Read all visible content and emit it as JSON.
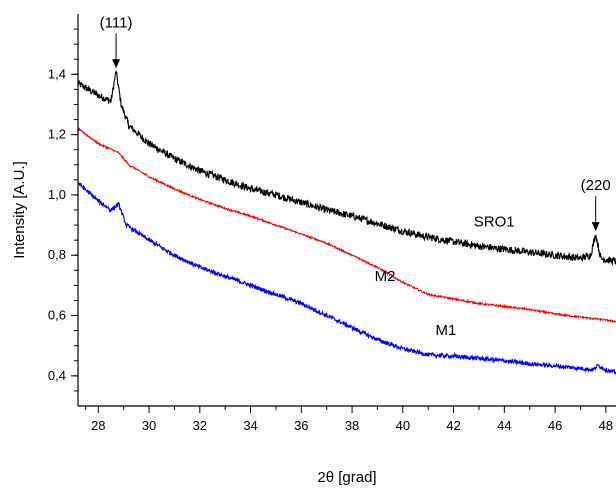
{
  "chart_data": {
    "type": "line",
    "title": "",
    "xlabel": "2θ [grad]",
    "ylabel": "Intensity [A.U.]",
    "xlim": [
      27.2,
      48.4
    ],
    "ylim": [
      0.3,
      1.6
    ],
    "x_ticks": [
      "28",
      "30",
      "32",
      "34",
      "36",
      "38",
      "40",
      "42",
      "44",
      "46",
      "48"
    ],
    "y_ticks": [
      "0,4",
      "0,6",
      "0,8",
      "1,0",
      "1,2",
      "1,4"
    ],
    "grid": false,
    "legend": "none",
    "series": [
      {
        "name": "SRO1",
        "color": "#000000",
        "noise": 0.012,
        "x": [
          27.2,
          28.0,
          28.5,
          28.7,
          28.9,
          29.2,
          30.0,
          31.0,
          32.0,
          33.0,
          34.0,
          35.0,
          36.0,
          37.0,
          38.0,
          39.0,
          40.0,
          41.0,
          42.0,
          43.0,
          44.0,
          45.0,
          46.0,
          47.0,
          47.4,
          47.6,
          47.8,
          48.0,
          48.4
        ],
        "y": [
          1.37,
          1.33,
          1.31,
          1.41,
          1.3,
          1.23,
          1.17,
          1.12,
          1.08,
          1.05,
          1.02,
          1.0,
          0.975,
          0.95,
          0.93,
          0.905,
          0.88,
          0.86,
          0.845,
          0.83,
          0.82,
          0.81,
          0.8,
          0.79,
          0.8,
          0.87,
          0.79,
          0.785,
          0.78
        ]
      },
      {
        "name": "M2",
        "color": "#ff0000",
        "noise": 0.003,
        "x": [
          27.2,
          28.0,
          28.8,
          29.2,
          30.0,
          31.0,
          32.0,
          33.0,
          34.0,
          35.0,
          36.0,
          37.0,
          38.0,
          39.0,
          40.0,
          41.0,
          42.0,
          43.0,
          44.0,
          45.0,
          46.0,
          47.0,
          48.0,
          48.4
        ],
        "y": [
          1.22,
          1.17,
          1.14,
          1.1,
          1.06,
          1.02,
          0.985,
          0.955,
          0.93,
          0.9,
          0.87,
          0.84,
          0.8,
          0.76,
          0.71,
          0.67,
          0.655,
          0.64,
          0.63,
          0.62,
          0.605,
          0.595,
          0.585,
          0.58
        ]
      },
      {
        "name": "M1",
        "color": "#0000ff",
        "noise": 0.007,
        "x": [
          27.2,
          28.0,
          28.5,
          28.8,
          29.1,
          30.0,
          31.0,
          32.0,
          33.0,
          34.0,
          35.0,
          36.0,
          37.0,
          38.0,
          39.0,
          40.0,
          41.0,
          42.0,
          43.0,
          44.0,
          45.0,
          46.0,
          47.0,
          47.5,
          47.7,
          48.0,
          48.4
        ],
        "y": [
          1.04,
          0.98,
          0.95,
          0.97,
          0.9,
          0.85,
          0.8,
          0.76,
          0.73,
          0.7,
          0.67,
          0.64,
          0.6,
          0.56,
          0.52,
          0.49,
          0.47,
          0.465,
          0.458,
          0.45,
          0.44,
          0.433,
          0.425,
          0.42,
          0.435,
          0.42,
          0.41
        ]
      }
    ],
    "annotations": [
      {
        "text": "(111)",
        "x": 28.7,
        "y": 1.41,
        "arrow": true
      },
      {
        "text": "(220",
        "x": 47.6,
        "y": 0.87,
        "arrow": true
      }
    ],
    "series_labels": [
      {
        "text": "SRO1",
        "x": 43.6,
        "y": 0.895
      },
      {
        "text": "M2",
        "x": 39.3,
        "y": 0.715
      },
      {
        "text": "M1",
        "x": 41.7,
        "y": 0.535
      }
    ]
  }
}
